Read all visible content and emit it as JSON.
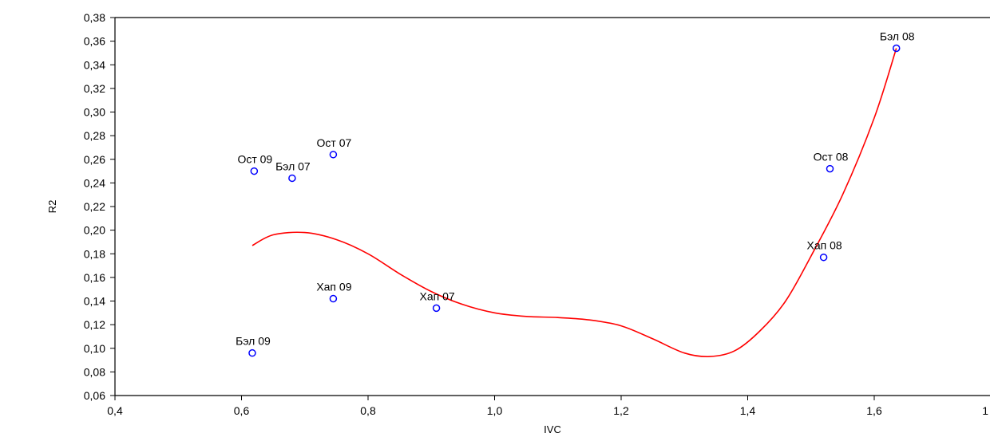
{
  "chart_data": {
    "type": "scatter",
    "title": "",
    "xlabel": "IVC",
    "ylabel": "R2",
    "xlim": [
      0.4,
      1.8
    ],
    "ylim": [
      0.06,
      0.38
    ],
    "x_ticks": [
      "0,4",
      "0,6",
      "0,8",
      "1,0",
      "1,2",
      "1,4",
      "1,6",
      "1"
    ],
    "y_ticks": [
      "0,06",
      "0,08",
      "0,10",
      "0,12",
      "0,14",
      "0,16",
      "0,18",
      "0,20",
      "0,22",
      "0,24",
      "0,26",
      "0,28",
      "0,30",
      "0,32",
      "0,34",
      "0,36",
      "0,38"
    ],
    "grid": false,
    "points": [
      {
        "label": "Ост 07",
        "x": 0.745,
        "y": 0.264
      },
      {
        "label": "Ост 09",
        "x": 0.62,
        "y": 0.25
      },
      {
        "label": "Бэл 07",
        "x": 0.68,
        "y": 0.244
      },
      {
        "label": "Хап 09",
        "x": 0.745,
        "y": 0.142
      },
      {
        "label": "Хап 07",
        "x": 0.908,
        "y": 0.134
      },
      {
        "label": "Бэл 09",
        "x": 0.617,
        "y": 0.096
      },
      {
        "label": "Бэл 08",
        "x": 1.635,
        "y": 0.354
      },
      {
        "label": "Ост 08",
        "x": 1.53,
        "y": 0.252
      },
      {
        "label": "Хап 08",
        "x": 1.52,
        "y": 0.177
      }
    ],
    "fit_curve": {
      "x": [
        0.617,
        0.65,
        0.7,
        0.75,
        0.8,
        0.85,
        0.9,
        0.95,
        1.0,
        1.05,
        1.1,
        1.15,
        1.2,
        1.25,
        1.3,
        1.34,
        1.38,
        1.42,
        1.46,
        1.5,
        1.55,
        1.6,
        1.635
      ],
      "y": [
        0.187,
        0.196,
        0.198,
        0.192,
        0.18,
        0.163,
        0.148,
        0.137,
        0.13,
        0.127,
        0.126,
        0.124,
        0.119,
        0.108,
        0.096,
        0.093,
        0.098,
        0.115,
        0.14,
        0.178,
        0.23,
        0.295,
        0.354
      ]
    },
    "colors": {
      "points": "#0000ff",
      "curve": "#ff0000",
      "axis": "#000000"
    }
  }
}
